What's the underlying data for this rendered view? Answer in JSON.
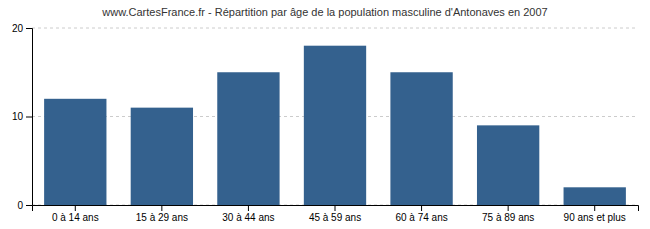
{
  "chart_data": {
    "type": "bar",
    "title": "www.CartesFrance.fr - Répartition par âge de la population masculine d'Antonaves en 2007",
    "categories": [
      "0 à 14 ans",
      "15 à 29 ans",
      "30 à 44 ans",
      "45 à 59 ans",
      "60 à 74 ans",
      "75 à 89 ans",
      "90 ans et plus"
    ],
    "values": [
      12,
      11,
      15,
      18,
      15,
      9,
      2
    ],
    "color": "#34618e",
    "ylim": [
      0,
      20
    ],
    "yticks": [
      0,
      10,
      20
    ],
    "grid": true
  }
}
